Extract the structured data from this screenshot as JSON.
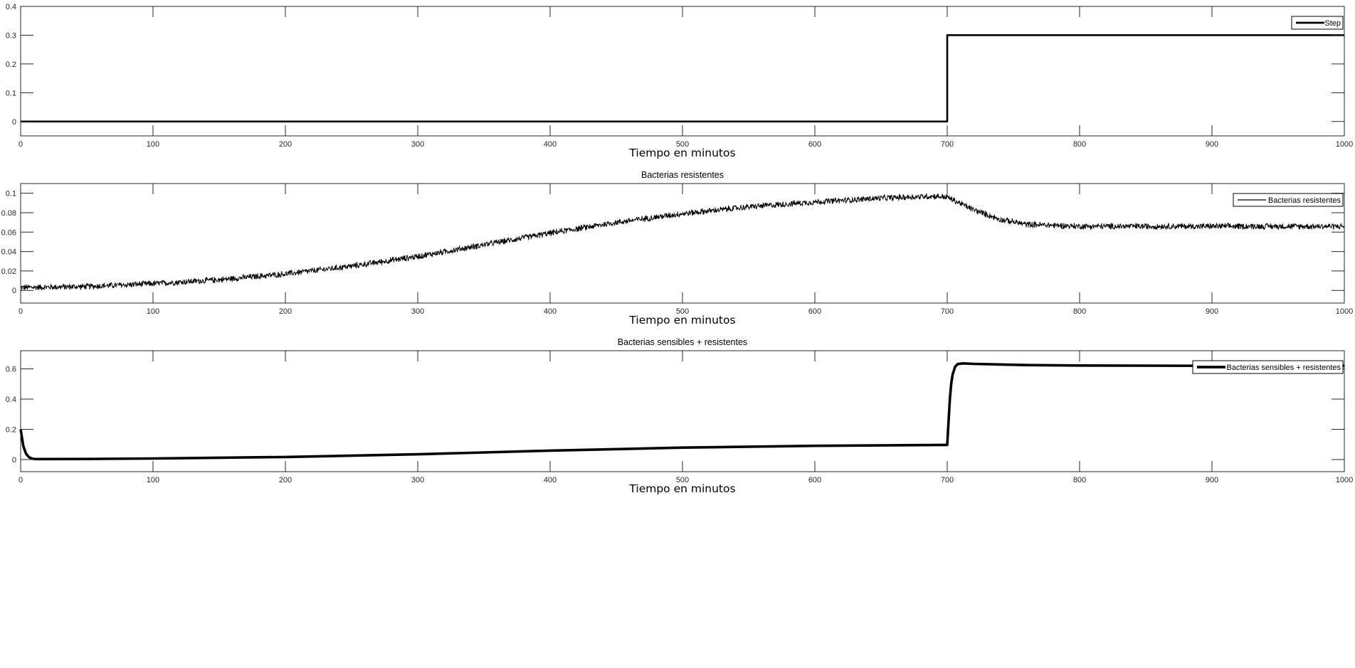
{
  "chart_data": [
    {
      "type": "line",
      "title": "",
      "xlabel": "Tiempo en minutos",
      "ylabel": "",
      "xlim": [
        0,
        1000
      ],
      "ylim": [
        -0.05,
        0.4
      ],
      "xticks": [
        0,
        100,
        200,
        300,
        400,
        500,
        600,
        700,
        800,
        900,
        1000
      ],
      "yticks": [
        0,
        0.1,
        0.2,
        0.3,
        0.4
      ],
      "ytick_labels": [
        "0",
        "0.1",
        "0.2",
        "0.3",
        "0.4"
      ],
      "legend_position": "top-right",
      "series": [
        {
          "name": "Step",
          "color": "#000000",
          "x": [
            0,
            700,
            700,
            1000
          ],
          "y": [
            0,
            0,
            0.3,
            0.3
          ]
        }
      ]
    },
    {
      "type": "line",
      "title": "Bacterias resistentes",
      "xlabel": "Tiempo en minutos",
      "ylabel": "",
      "xlim": [
        0,
        1000
      ],
      "ylim": [
        -0.013,
        0.11
      ],
      "xticks": [
        0,
        100,
        200,
        300,
        400,
        500,
        600,
        700,
        800,
        900,
        1000
      ],
      "yticks": [
        0,
        0.02,
        0.04,
        0.06,
        0.08,
        0.1
      ],
      "ytick_labels": [
        "0",
        "0.02",
        "0.04",
        "0.06",
        "0.08",
        "0.1"
      ],
      "legend_position": "top-right",
      "noise_amplitude": 0.0035,
      "series": [
        {
          "name": "Bacterias resistentes",
          "color": "#000000",
          "x": [
            0,
            50,
            100,
            150,
            200,
            250,
            300,
            350,
            400,
            450,
            500,
            550,
            600,
            650,
            690,
            700,
            720,
            740,
            760,
            800,
            900,
            1000
          ],
          "y": [
            0.003,
            0.004,
            0.007,
            0.011,
            0.017,
            0.025,
            0.035,
            0.047,
            0.059,
            0.07,
            0.079,
            0.086,
            0.091,
            0.095,
            0.097,
            0.096,
            0.083,
            0.073,
            0.068,
            0.066,
            0.066,
            0.066
          ]
        }
      ]
    },
    {
      "type": "line",
      "title": "Bacterias sensibles + resistentes",
      "xlabel": "Tiempo en minutos",
      "ylabel": "",
      "xlim": [
        0,
        1000
      ],
      "ylim": [
        -0.08,
        0.72
      ],
      "xticks": [
        0,
        100,
        200,
        300,
        400,
        500,
        600,
        700,
        800,
        900,
        1000
      ],
      "yticks": [
        0,
        0.2,
        0.4,
        0.6
      ],
      "ytick_labels": [
        "0",
        "0.2",
        "0.4",
        "0.6"
      ],
      "legend_position": "top-right",
      "series": [
        {
          "name": "Bacterias sensibles + resistentes",
          "color": "#000000",
          "x": [
            0,
            2,
            4,
            6,
            8,
            10,
            15,
            50,
            100,
            200,
            300,
            400,
            500,
            600,
            699,
            700,
            701,
            702,
            703,
            704,
            706,
            708,
            712,
            720,
            760,
            800,
            900,
            1000
          ],
          "y": [
            0.2,
            0.09,
            0.04,
            0.018,
            0.008,
            0.004,
            0.003,
            0.004,
            0.007,
            0.017,
            0.035,
            0.059,
            0.079,
            0.091,
            0.097,
            0.097,
            0.25,
            0.4,
            0.5,
            0.56,
            0.615,
            0.632,
            0.636,
            0.633,
            0.625,
            0.622,
            0.62,
            0.62
          ]
        }
      ]
    }
  ]
}
